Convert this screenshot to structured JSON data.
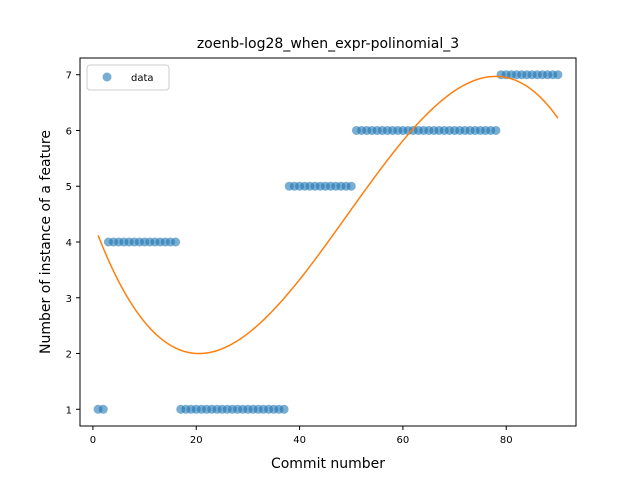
{
  "chart_data": {
    "type": "scatter",
    "title": "zoenb-log28_when_expr-polinomial_3",
    "xlabel": "Commit number",
    "ylabel": "Number of instance of a feature",
    "xlim": [
      -2.5,
      93.5
    ],
    "ylim": [
      0.7,
      7.3
    ],
    "xticks": [
      0,
      20,
      40,
      60,
      80
    ],
    "yticks": [
      1,
      2,
      3,
      4,
      5,
      6,
      7
    ],
    "legend_position": "top-left",
    "grid": false,
    "series": [
      {
        "name": "data",
        "kind": "points",
        "color": "#1f77b4",
        "segments": [
          {
            "x_from": 1,
            "x_to": 2,
            "y": 1
          },
          {
            "x_from": 3,
            "x_to": 16,
            "y": 4
          },
          {
            "x_from": 17,
            "x_to": 37,
            "y": 1
          },
          {
            "x_from": 38,
            "x_to": 50,
            "y": 5
          },
          {
            "x_from": 51,
            "x_to": 78,
            "y": 6
          },
          {
            "x_from": 79,
            "x_to": 90,
            "y": 7
          }
        ]
      },
      {
        "kind": "fit-curve",
        "color": "#ff7f0e",
        "degree": 3,
        "x_range": [
          1,
          90
        ],
        "curve_points": [
          [
            1,
            4.12
          ],
          [
            20.5,
            2.0
          ],
          [
            78,
            6.97
          ],
          [
            90,
            6.22
          ]
        ]
      }
    ]
  }
}
